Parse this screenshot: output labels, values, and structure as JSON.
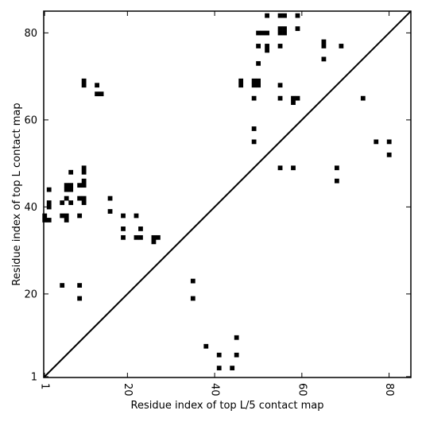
{
  "chart_data": {
    "type": "scatter",
    "marker": "square",
    "xlabel": "Residue index of top L/5 contact map",
    "ylabel": "Residue index of top L contact map",
    "xlim": [
      0.8,
      85
    ],
    "ylim": [
      0.8,
      85
    ],
    "x_ticks": [
      1,
      20,
      40,
      60,
      80
    ],
    "y_ticks": [
      1,
      20,
      40,
      60,
      80
    ],
    "diagonal": true,
    "grid": false,
    "colors": {
      "marker": "#000000",
      "line": "#000000"
    },
    "points_upper": [
      [
        2,
        41
      ],
      [
        2,
        40
      ],
      [
        2,
        44
      ],
      [
        1,
        38
      ],
      [
        1,
        37
      ],
      [
        2,
        37
      ],
      [
        5,
        41
      ],
      [
        5,
        38
      ],
      [
        6,
        42
      ],
      [
        6,
        38
      ],
      [
        6,
        37
      ],
      [
        6,
        45
      ],
      [
        7,
        45
      ],
      [
        6,
        44
      ],
      [
        7,
        44
      ],
      [
        7,
        41
      ],
      [
        7,
        48
      ],
      [
        5,
        22
      ],
      [
        9,
        45
      ],
      [
        9,
        42
      ],
      [
        10,
        42
      ],
      [
        10,
        41
      ],
      [
        10,
        46
      ],
      [
        10,
        45
      ],
      [
        10,
        49
      ],
      [
        10,
        48
      ],
      [
        9,
        38
      ],
      [
        9,
        22
      ],
      [
        9,
        19
      ],
      [
        10,
        69
      ],
      [
        10,
        68
      ],
      [
        13,
        68
      ],
      [
        13,
        66
      ],
      [
        14,
        66
      ],
      [
        16,
        42
      ],
      [
        16,
        39
      ],
      [
        19,
        38
      ],
      [
        19,
        35
      ],
      [
        19,
        33
      ],
      [
        22,
        38
      ],
      [
        22,
        33
      ],
      [
        23,
        33
      ],
      [
        23,
        35
      ],
      [
        26,
        33
      ],
      [
        26,
        32
      ],
      [
        27,
        33
      ],
      [
        35,
        23
      ],
      [
        35,
        19
      ],
      [
        46,
        69
      ],
      [
        46,
        68
      ],
      [
        49,
        69
      ],
      [
        50,
        69
      ],
      [
        49,
        68
      ],
      [
        50,
        68
      ],
      [
        49,
        65
      ],
      [
        49,
        58
      ],
      [
        49,
        55
      ],
      [
        50,
        80
      ],
      [
        51,
        80
      ],
      [
        52,
        80
      ],
      [
        50,
        77
      ],
      [
        50,
        73
      ],
      [
        52,
        84
      ],
      [
        52,
        77
      ],
      [
        52,
        76
      ],
      [
        55,
        84
      ],
      [
        56,
        84
      ],
      [
        55,
        81
      ],
      [
        56,
        81
      ],
      [
        55,
        80
      ],
      [
        56,
        80
      ],
      [
        55,
        77
      ],
      [
        55,
        68
      ],
      [
        55,
        65
      ],
      [
        58,
        65
      ],
      [
        59,
        65
      ],
      [
        58,
        64
      ],
      [
        59,
        84
      ],
      [
        59,
        81
      ],
      [
        65,
        78
      ],
      [
        65,
        77
      ],
      [
        65,
        74
      ],
      [
        69,
        77
      ],
      [
        74,
        65
      ],
      [
        77,
        55
      ],
      [
        80,
        55
      ],
      [
        80,
        52
      ]
    ],
    "points_lower": [
      [
        55,
        49
      ],
      [
        58,
        49
      ],
      [
        68,
        49
      ],
      [
        68,
        46
      ],
      [
        38,
        8
      ],
      [
        41,
        6
      ],
      [
        41,
        3
      ],
      [
        44,
        3
      ],
      [
        45,
        10
      ],
      [
        45,
        6
      ]
    ]
  }
}
